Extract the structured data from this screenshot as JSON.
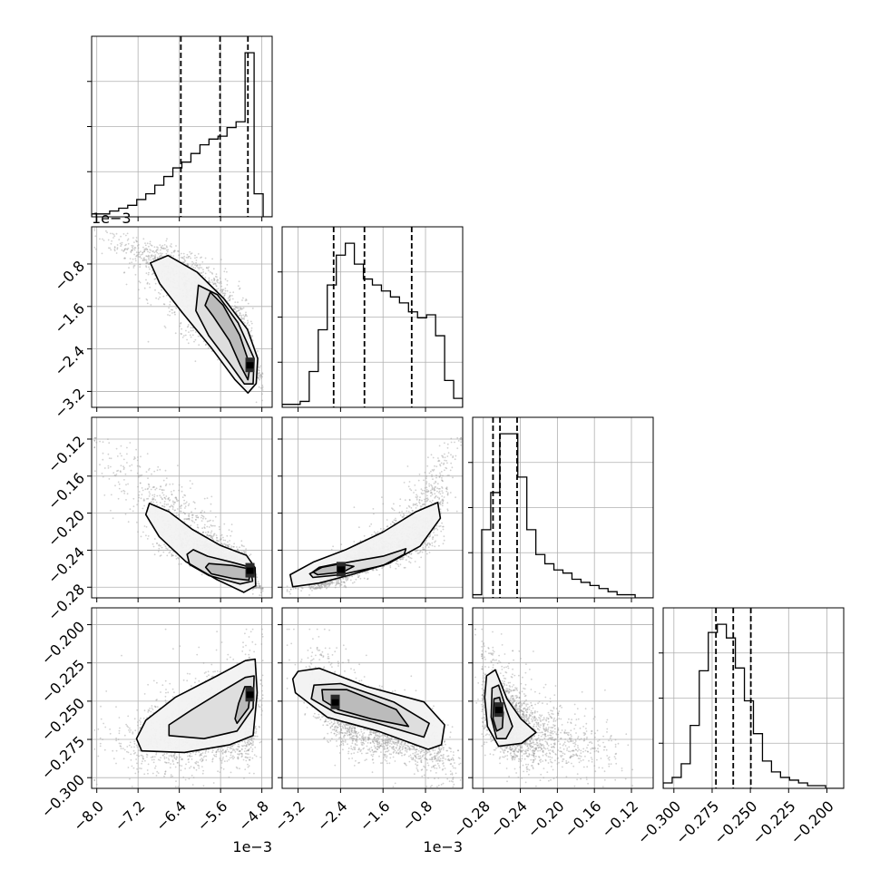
{
  "chart_data": {
    "type": "corner",
    "grid": true,
    "legend": "none",
    "variables": [
      {
        "range": [
          -0.0081,
          -0.0046
        ],
        "ticks": [
          -0.008,
          -0.0072,
          -0.0064,
          -0.0056,
          -0.0048
        ],
        "tick_labels": [
          "−8.0",
          "−7.2",
          "−6.4",
          "−5.6",
          "−4.8"
        ],
        "scale_label": "1e−3",
        "quantiles": [
          -0.00637,
          -0.00561,
          -0.00507
        ],
        "hist_values": [
          1,
          1,
          2,
          3,
          4,
          6,
          8,
          11,
          14,
          17,
          19,
          22,
          25,
          27,
          28,
          31,
          33,
          57,
          8,
          0
        ]
      },
      {
        "range": [
          -0.0035,
          -0.0001
        ],
        "ticks": [
          -0.0032,
          -0.0024,
          -0.0016,
          -0.0008
        ],
        "tick_labels": [
          "−3.2",
          "−2.4",
          "−1.6",
          "−0.8"
        ],
        "scale_label": "1e−3",
        "quantiles": [
          -0.00253,
          -0.00195,
          -0.00106
        ],
        "hist_values": [
          1,
          1,
          2,
          12,
          26,
          41,
          51,
          55,
          48,
          43,
          41,
          39,
          37,
          35,
          32,
          30,
          31,
          24,
          9,
          3
        ]
      },
      {
        "range": [
          -0.2915,
          -0.0965
        ],
        "ticks": [
          -0.28,
          -0.24,
          -0.2,
          -0.16,
          -0.12
        ],
        "tick_labels": [
          "−0.28",
          "−0.24",
          "−0.20",
          "−0.16",
          "−0.12"
        ],
        "scale_label": "",
        "quantiles": [
          -0.2695,
          -0.262,
          -0.2435
        ],
        "hist_values": [
          1,
          22,
          34,
          53,
          53,
          39,
          22,
          14,
          11,
          9,
          8,
          6,
          5,
          4,
          3,
          2,
          1,
          1,
          0,
          0
        ]
      },
      {
        "range": [
          -0.307,
          -0.189
        ],
        "ticks": [
          -0.3,
          -0.275,
          -0.25,
          -0.225,
          -0.2
        ],
        "tick_labels": [
          "−0.300",
          "−0.275",
          "−0.250",
          "−0.225",
          "−0.200"
        ],
        "scale_label": "",
        "quantiles": [
          -0.2725,
          -0.2612,
          -0.2497
        ],
        "hist_values": [
          2,
          4,
          9,
          23,
          43,
          57,
          60,
          55,
          44,
          32,
          20,
          10,
          6,
          4,
          3,
          2,
          1,
          1,
          0,
          0
        ]
      }
    ],
    "pairs": [
      {
        "x_var": 0,
        "y_var": 1,
        "rho": -0.88,
        "mode": [
          -0.00503,
          -0.0027
        ],
        "levels": [
          [
            [
              -0.00696,
              -0.00078
            ],
            [
              -0.00662,
              -0.00064
            ],
            [
              -0.00606,
              -0.00095
            ],
            [
              -0.00554,
              -0.00145
            ],
            [
              -0.00508,
              -0.00203
            ],
            [
              -0.00488,
              -0.00258
            ],
            [
              -0.00491,
              -0.00305
            ],
            [
              -0.00507,
              -0.00323
            ],
            [
              -0.00532,
              -0.00298
            ],
            [
              -0.00578,
              -0.00238
            ],
            [
              -0.00634,
              -0.00172
            ],
            [
              -0.00678,
              -0.00117
            ]
          ],
          [
            [
              -0.00603,
              -0.0012
            ],
            [
              -0.00566,
              -0.00138
            ],
            [
              -0.00526,
              -0.00191
            ],
            [
              -0.00495,
              -0.00258
            ],
            [
              -0.00497,
              -0.00306
            ],
            [
              -0.00514,
              -0.00306
            ],
            [
              -0.00542,
              -0.00268
            ],
            [
              -0.00583,
              -0.00215
            ],
            [
              -0.00608,
              -0.00168
            ]
          ],
          [
            [
              -0.0058,
              -0.00133
            ],
            [
              -0.00555,
              -0.00158
            ],
            [
              -0.00523,
              -0.00214
            ],
            [
              -0.00503,
              -0.00272
            ],
            [
              -0.00507,
              -0.00298
            ],
            [
              -0.00522,
              -0.0027
            ],
            [
              -0.00543,
              -0.00224
            ],
            [
              -0.00574,
              -0.00179
            ],
            [
              -0.0059,
              -0.00158
            ]
          ]
        ]
      },
      {
        "x_var": 0,
        "y_var": 2,
        "rho": -0.9,
        "mode": [
          -0.00503,
          -0.2617
        ],
        "levels": [
          [
            [
              -0.00698,
              -0.1895
            ],
            [
              -0.0066,
              -0.1985
            ],
            [
              -0.00615,
              -0.2175
            ],
            [
              -0.0056,
              -0.235
            ],
            [
              -0.0051,
              -0.2455
            ],
            [
              -0.00493,
              -0.259
            ],
            [
              -0.00492,
              -0.2785
            ],
            [
              -0.00515,
              -0.2855
            ],
            [
              -0.00568,
              -0.2715
            ],
            [
              -0.00627,
              -0.2525
            ],
            [
              -0.00679,
              -0.2255
            ],
            [
              -0.00705,
              -0.2015
            ]
          ],
          [
            [
              -0.00613,
              -0.2395
            ],
            [
              -0.00585,
              -0.2465
            ],
            [
              -0.00535,
              -0.2535
            ],
            [
              -0.00502,
              -0.2585
            ],
            [
              -0.00498,
              -0.2735
            ],
            [
              -0.00522,
              -0.2765
            ],
            [
              -0.00582,
              -0.2675
            ],
            [
              -0.0062,
              -0.2555
            ],
            [
              -0.00625,
              -0.2445
            ]
          ],
          [
            [
              -0.00583,
              -0.2545
            ],
            [
              -0.00537,
              -0.2565
            ],
            [
              -0.00502,
              -0.2605
            ],
            [
              -0.00505,
              -0.2725
            ],
            [
              -0.00537,
              -0.2705
            ],
            [
              -0.00578,
              -0.2655
            ],
            [
              -0.00589,
              -0.2585
            ]
          ]
        ]
      },
      {
        "x_var": 1,
        "y_var": 2,
        "rho": 0.9,
        "mode": [
          -0.00239,
          -0.2605
        ],
        "levels": [
          [
            [
              -0.0033,
              -0.2795
            ],
            [
              -0.0028,
              -0.2755
            ],
            [
              -0.0022,
              -0.2665
            ],
            [
              -0.0015,
              -0.2545
            ],
            [
              -0.0009,
              -0.2355
            ],
            [
              -0.00052,
              -0.2055
            ],
            [
              -0.00057,
              -0.1885
            ],
            [
              -0.00098,
              -0.1985
            ],
            [
              -0.0016,
              -0.2205
            ],
            [
              -0.0023,
              -0.2395
            ],
            [
              -0.0029,
              -0.2525
            ],
            [
              -0.00335,
              -0.2665
            ]
          ],
          [
            [
              -0.00292,
              -0.2695
            ],
            [
              -0.0024,
              -0.2665
            ],
            [
              -0.0016,
              -0.2565
            ],
            [
              -0.0012,
              -0.2445
            ],
            [
              -0.00117,
              -0.2385
            ],
            [
              -0.0016,
              -0.2465
            ],
            [
              -0.0022,
              -0.2525
            ],
            [
              -0.00275,
              -0.2585
            ],
            [
              -0.00298,
              -0.2655
            ]
          ],
          [
            [
              -0.00283,
              -0.2665
            ],
            [
              -0.00235,
              -0.2635
            ],
            [
              -0.00215,
              -0.2575
            ],
            [
              -0.00245,
              -0.2545
            ],
            [
              -0.0028,
              -0.2585
            ],
            [
              -0.00292,
              -0.2635
            ]
          ]
        ]
      },
      {
        "x_var": 0,
        "y_var": 3,
        "rho": 0.35,
        "mode": [
          -0.00503,
          -0.2455
        ],
        "levels": [
          [
            [
              -0.00713,
              -0.2825
            ],
            [
              -0.0063,
              -0.2835
            ],
            [
              -0.00542,
              -0.2785
            ],
            [
              -0.00497,
              -0.2725
            ],
            [
              -0.00489,
              -0.2445
            ],
            [
              -0.00493,
              -0.2225
            ],
            [
              -0.00512,
              -0.2235
            ],
            [
              -0.00567,
              -0.2335
            ],
            [
              -0.00648,
              -0.2475
            ],
            [
              -0.00705,
              -0.2625
            ],
            [
              -0.00723,
              -0.2745
            ]
          ],
          [
            [
              -0.0066,
              -0.2725
            ],
            [
              -0.00592,
              -0.2745
            ],
            [
              -0.00528,
              -0.2695
            ],
            [
              -0.00497,
              -0.2545
            ],
            [
              -0.00495,
              -0.2335
            ],
            [
              -0.00512,
              -0.2345
            ],
            [
              -0.00562,
              -0.2445
            ],
            [
              -0.00615,
              -0.2555
            ],
            [
              -0.0066,
              -0.2655
            ]
          ],
          [
            [
              -0.00528,
              -0.2645
            ],
            [
              -0.00506,
              -0.2545
            ],
            [
              -0.00501,
              -0.2405
            ],
            [
              -0.00513,
              -0.2405
            ],
            [
              -0.00525,
              -0.2515
            ],
            [
              -0.00532,
              -0.2615
            ]
          ]
        ]
      },
      {
        "x_var": 1,
        "y_var": 3,
        "rho": -0.7,
        "mode": [
          -0.0025,
          -0.2505
        ],
        "levels": [
          [
            [
              -0.0032,
              -0.2305
            ],
            [
              -0.0028,
              -0.2285
            ],
            [
              -0.0019,
              -0.2405
            ],
            [
              -0.00083,
              -0.2505
            ],
            [
              -0.00044,
              -0.2655
            ],
            [
              -0.0005,
              -0.2785
            ],
            [
              -0.00075,
              -0.2815
            ],
            [
              -0.0017,
              -0.2695
            ],
            [
              -0.00265,
              -0.2605
            ],
            [
              -0.00325,
              -0.2445
            ],
            [
              -0.0033,
              -0.2355
            ]
          ],
          [
            [
              -0.0029,
              -0.2395
            ],
            [
              -0.0024,
              -0.2385
            ],
            [
              -0.0014,
              -0.2505
            ],
            [
              -0.00073,
              -0.2645
            ],
            [
              -0.00083,
              -0.2735
            ],
            [
              -0.0018,
              -0.2635
            ],
            [
              -0.0025,
              -0.2575
            ],
            [
              -0.00295,
              -0.2485
            ]
          ],
          [
            [
              -0.00275,
              -0.2425
            ],
            [
              -0.00228,
              -0.2425
            ],
            [
              -0.00135,
              -0.2555
            ],
            [
              -0.00112,
              -0.2665
            ],
            [
              -0.00183,
              -0.2615
            ],
            [
              -0.00245,
              -0.2555
            ],
            [
              -0.00273,
              -0.2495
            ]
          ]
        ]
      },
      {
        "x_var": 2,
        "y_var": 3,
        "rho": -0.55,
        "mode": [
          -0.2632,
          -0.2555
        ],
        "levels": [
          [
            [
              -0.2765,
              -0.2335
            ],
            [
              -0.267,
              -0.2295
            ],
            [
              -0.2545,
              -0.2485
            ],
            [
              -0.2395,
              -0.2615
            ],
            [
              -0.223,
              -0.2705
            ],
            [
              -0.2385,
              -0.2775
            ],
            [
              -0.2635,
              -0.2795
            ],
            [
              -0.2755,
              -0.2665
            ],
            [
              -0.2785,
              -0.2475
            ]
          ],
          [
            [
              -0.2705,
              -0.2415
            ],
            [
              -0.2635,
              -0.2395
            ],
            [
              -0.2555,
              -0.2545
            ],
            [
              -0.2485,
              -0.2665
            ],
            [
              -0.2555,
              -0.2745
            ],
            [
              -0.2655,
              -0.2745
            ],
            [
              -0.2715,
              -0.2605
            ]
          ],
          [
            [
              -0.2685,
              -0.2485
            ],
            [
              -0.2625,
              -0.2475
            ],
            [
              -0.2585,
              -0.2575
            ],
            [
              -0.2595,
              -0.2675
            ],
            [
              -0.2655,
              -0.2695
            ],
            [
              -0.2695,
              -0.2615
            ]
          ]
        ]
      }
    ]
  }
}
